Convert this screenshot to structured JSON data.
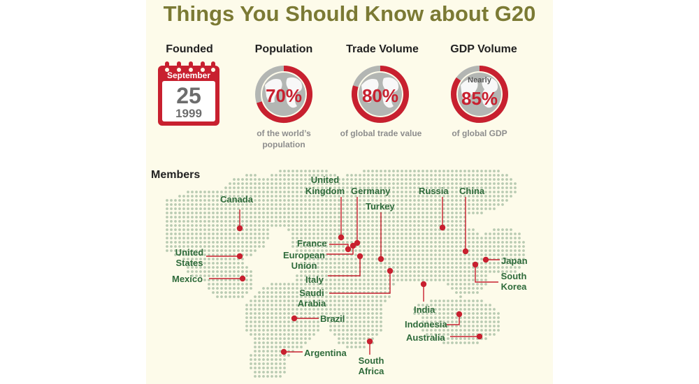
{
  "title": "Things You Should Know about G20",
  "founded": {
    "heading": "Founded",
    "month": "September",
    "day": "25",
    "year": "1999"
  },
  "stats": [
    {
      "heading": "Population",
      "value": "70%",
      "fraction": 0.7,
      "caption_line1": "of the world’s",
      "caption_line2": "population",
      "prefix": ""
    },
    {
      "heading": "Trade Volume",
      "value": "80%",
      "fraction": 0.8,
      "caption_line1": "of global trade value",
      "caption_line2": "",
      "prefix": ""
    },
    {
      "heading": "GDP Volume",
      "value": "85%",
      "fraction": 0.85,
      "caption_line1": "of global GDP",
      "caption_line2": "",
      "prefix": "Nearly"
    }
  ],
  "members_heading": "Members",
  "members": {
    "canada": "Canada",
    "united_states_1": "United",
    "united_states_2": "States",
    "mexico": "Mexico",
    "united_kingdom_1": "United",
    "united_kingdom_2": "Kingdom",
    "germany": "Germany",
    "france": "France",
    "european_union_1": "European",
    "european_union_2": "Union",
    "italy": "Italy",
    "turkey": "Turkey",
    "saudi_arabia_1": "Saudi",
    "saudi_arabia_2": "Arabia",
    "russia": "Russia",
    "china": "China",
    "japan": "Japan",
    "south_korea_1": "South",
    "south_korea_2": "Korea",
    "india": "India",
    "indonesia": "Indonesia",
    "australia": "Australia",
    "brazil": "Brazil",
    "argentina": "Argentina",
    "south_africa_1": "South",
    "south_africa_2": "Africa"
  },
  "colors": {
    "accent": "#c8202f",
    "title": "#7b7a34",
    "label": "#2f6b3b",
    "map_dot": "#b9cbb2",
    "background": "#fdfbea"
  },
  "icons": {
    "calendar": "calendar-icon",
    "globe": "globe-icon",
    "world_map": "world-map-dotted"
  }
}
